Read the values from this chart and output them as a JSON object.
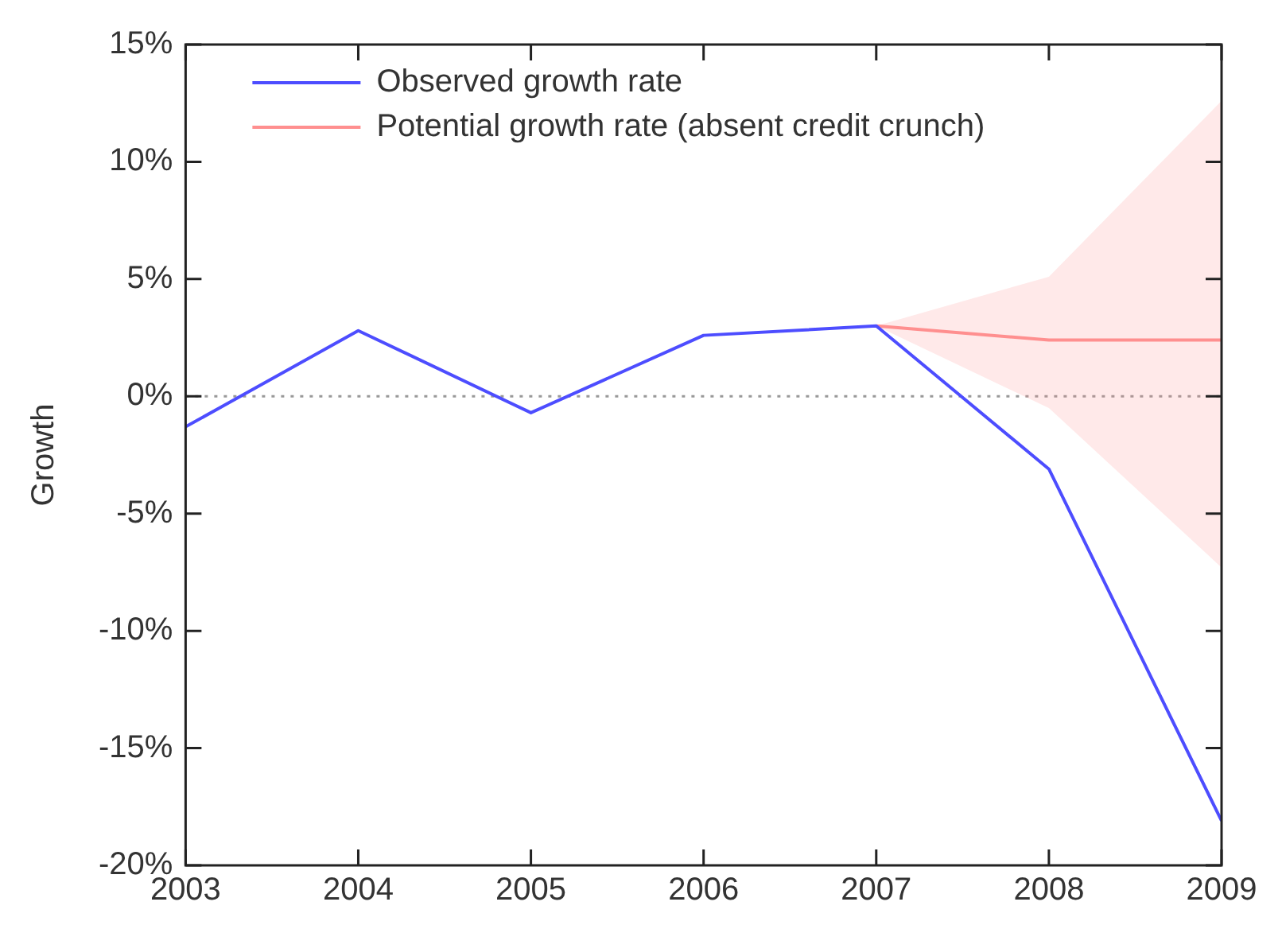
{
  "chart_data": {
    "type": "line",
    "ylabel": "Growth",
    "x": [
      2003,
      2004,
      2005,
      2006,
      2007,
      2008,
      2009
    ],
    "series": [
      {
        "name": "Observed growth rate",
        "color": "#4d4dff",
        "values": [
          -1.3,
          2.8,
          -0.7,
          2.6,
          3.0,
          -3.1,
          -18.1
        ]
      },
      {
        "name": "Potential growth rate (absent credit crunch)",
        "color": "#ff8f8f",
        "values": [
          null,
          null,
          null,
          null,
          3.0,
          2.4,
          2.4
        ],
        "lower": [
          null,
          null,
          null,
          null,
          3.0,
          -0.5,
          -7.3
        ],
        "upper": [
          null,
          null,
          null,
          null,
          3.0,
          5.1,
          12.6
        ]
      }
    ],
    "xlim": [
      2003,
      2009
    ],
    "xticks": [
      2003,
      2004,
      2005,
      2006,
      2007,
      2008,
      2009
    ],
    "ylim": [
      -20,
      15
    ],
    "yticks": [
      {
        "value": -20,
        "label": "-20%"
      },
      {
        "value": -15,
        "label": "-15%"
      },
      {
        "value": -10,
        "label": "-10%"
      },
      {
        "value": -5,
        "label": "-5%"
      },
      {
        "value": 0,
        "label": "0%"
      },
      {
        "value": 5,
        "label": "5%"
      },
      {
        "value": 10,
        "label": "10%"
      },
      {
        "value": 15,
        "label": "15%"
      }
    ],
    "ref_lines": [
      {
        "axis": "y",
        "value": 0,
        "color": "#999999",
        "line_style": "dotted"
      }
    ],
    "grid": false,
    "legend": "top left",
    "marker": "none",
    "line_style": "solid"
  }
}
